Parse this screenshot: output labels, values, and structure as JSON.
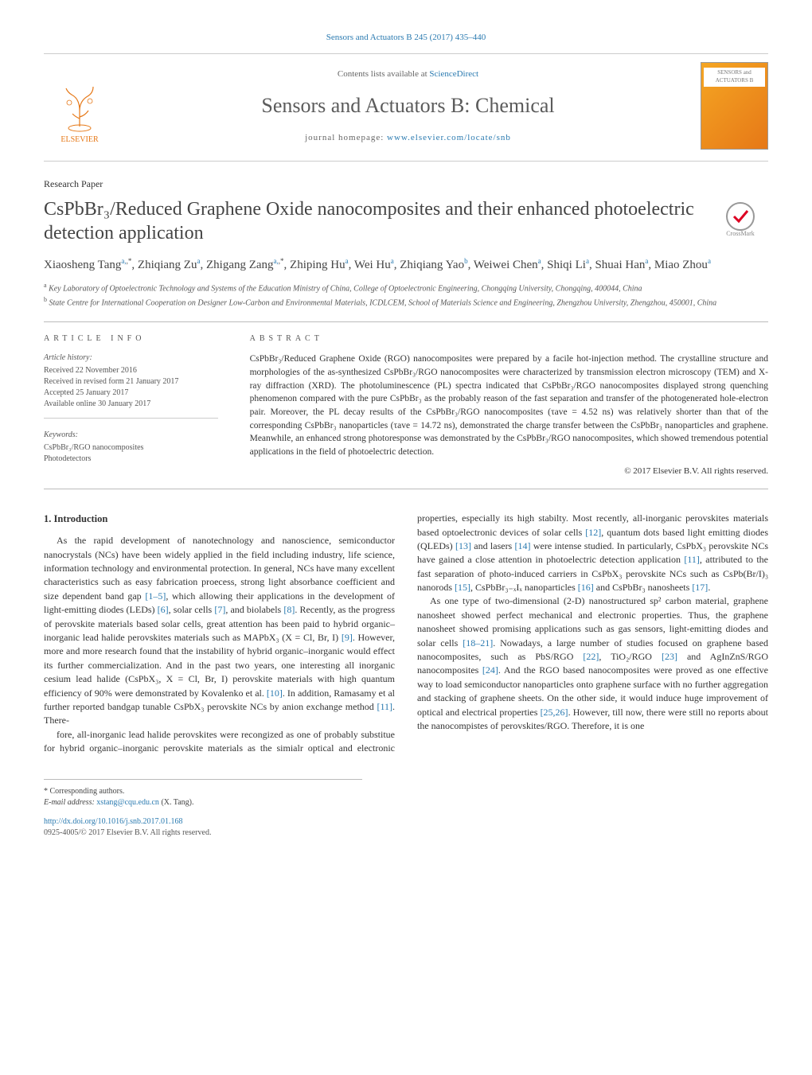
{
  "header": {
    "journal_ref": "Sensors and Actuators B 245 (2017) 435–440",
    "contents_prefix": "Contents lists available at ",
    "contents_link": "ScienceDirect",
    "journal_name": "Sensors and Actuators B: Chemical",
    "homepage_prefix": "journal homepage: ",
    "homepage_url": "www.elsevier.com/locate/snb",
    "publisher": "ELSEVIER",
    "cover_label_top": "SENSORS and",
    "cover_label_bottom": "ACTUATORS"
  },
  "article": {
    "type": "Research Paper",
    "title": "CsPbBr₃/Reduced Graphene Oxide nanocomposites and their enhanced photoelectric detection application",
    "crossmark": "CrossMark",
    "authors_html": "Xiaosheng Tang",
    "authors": [
      {
        "name": "Xiaosheng Tang",
        "aff": "a,*"
      },
      {
        "name": "Zhiqiang Zu",
        "aff": "a"
      },
      {
        "name": "Zhigang Zang",
        "aff": "a,*"
      },
      {
        "name": "Zhiping Hu",
        "aff": "a"
      },
      {
        "name": "Wei Hu",
        "aff": "a"
      },
      {
        "name": "Zhiqiang Yao",
        "aff": "b"
      },
      {
        "name": "Weiwei Chen",
        "aff": "a"
      },
      {
        "name": "Shiqi Li",
        "aff": "a"
      },
      {
        "name": "Shuai Han",
        "aff": "a"
      },
      {
        "name": "Miao Zhou",
        "aff": "a"
      }
    ],
    "affiliations": [
      {
        "key": "a",
        "text": "Key Laboratory of Optoelectronic Technology and Systems of the Education Ministry of China, College of Optoelectronic Engineering, Chongqing University, Chongqing, 400044, China"
      },
      {
        "key": "b",
        "text": "State Centre for International Cooperation on Designer Low-Carbon and Environmental Materials, ICDLCEM, School of Materials Science and Engineering, Zhengzhou University, Zhengzhou, 450001, China"
      }
    ]
  },
  "info": {
    "label": "ARTICLE INFO",
    "history_title": "Article history:",
    "history": [
      "Received 22 November 2016",
      "Received in revised form 21 January 2017",
      "Accepted 25 January 2017",
      "Available online 30 January 2017"
    ],
    "keywords_title": "Keywords:",
    "keywords": [
      "CsPbBr₃/RGO nanocomposites",
      "Photodetectors"
    ]
  },
  "abstract": {
    "label": "ABSTRACT",
    "text": "CsPbBr₃/Reduced Graphene Oxide (RGO) nanocomposites were prepared by a facile hot-injection method. The crystalline structure and morphologies of the as-synthesized CsPbBr₃/RGO nanocomposites were characterized by transmission electron microscopy (TEM) and X-ray diffraction (XRD). The photoluminescence (PL) spectra indicated that CsPbBr₃/RGO nanocomposites displayed strong quenching phenomenon compared with the pure CsPbBr₃ as the probably reason of the fast separation and transfer of the photogenerated hole-electron pair. Moreover, the PL decay results of the CsPbBr₃/RGO nanocomposites (τave = 4.52 ns) was relatively shorter than that of the corresponding CsPbBr₃ nanoparticles (τave = 14.72 ns), demonstrated the charge transfer between the CsPbBr₃ nanoparticles and graphene. Meanwhile, an enhanced strong photoresponse was demonstrated by the CsPbBr₃/RGO nanocomposites, which showed tremendous potential applications in the field of photoelectric detection.",
    "copyright": "© 2017 Elsevier B.V. All rights reserved."
  },
  "body": {
    "heading": "1. Introduction",
    "col1_p1": "As the rapid development of nanotechnology and nanoscience, semiconductor nanocrystals (NCs) have been widely applied in the field including industry, life science, information technology and environmental protection. In general, NCs have many excellent characteristics such as easy fabrication proecess, strong light absorbance coefficient and size dependent band gap [1–5], which allowing their applications in the development of light-emitting diodes (LEDs) [6], solar cells [7], and biolabels [8]. Recently, as the progress of perovskite materials based solar cells, great attention has been paid to hybrid organic–inorganic lead halide perovskites materials such as MAPbX₃ (X = Cl, Br, I) [9]. However, more and more research found that the instability of hybrid organic–inorganic would effect its further commercialization. And in the past two years, one interesting all inorganic cesium lead halide (CsPbX₃, X = Cl, Br, I) perovskite materials with high quantum efficiency of 90% were demonstrated by Kovalenko et al. [10]. In addition, Ramasamy et al further reported bandgap tunable CsPbX₃ perovskite NCs by anion exchange method [11]. There-",
    "col2_p1": "fore, all-inorganic lead halide perovskites were recongized as one of probably substitue for hybrid organic–inorganic perovskite materials as the simialr optical and electronic properties, especially its high stabilty. Most recently, all-inorganic perovskites materials based optoelectronic devices of solar cells [12], quantum dots based light emitting diodes (QLEDs) [13] and lasers [14] were intense studied. In particularly, CsPbX₃ perovskite NCs have gained a close attention in photoelectric detection application [11], attributed to the fast separation of photo-induced carriers in CsPbX₃ perovskite NCs such as CsPb(Br/I)₃ nanorods [15], CsPbBr₃₋ₓIₓ nanoparticles [16] and CsPbBr₃ nanosheets [17].",
    "col2_p2": "As one type of two-dimensional (2-D) nanostructured sp² carbon material, graphene nanosheet showed perfect mechanical and electronic properties. Thus, the graphene nanosheet showed promising applications such as gas sensors, light-emitting diodes and solar cells [18–21]. Nowadays, a large number of studies focused on graphene based nanocomposites, such as PbS/RGO [22], TiO₂/RGO [23] and AgInZnS/RGO nanocomposites [24]. And the RGO based nanocomposites were proved as one effective way to load semiconductor nanoparticles onto graphene surface with no further aggregation and stacking of graphene sheets. On the other side, it would induce huge improvement of optical and electrical properties [25,26]. However, till now, there were still no reports about the nanocompistes of perovskites/RGO. Therefore, it is one"
  },
  "footer": {
    "corr": "* Corresponding authors.",
    "email_label": "E-mail address: ",
    "email": "xstang@cqu.edu.cn",
    "email_person": " (X. Tang).",
    "doi": "http://dx.doi.org/10.1016/j.snb.2017.01.168",
    "issn_copy": "0925-4005/© 2017 Elsevier B.V. All rights reserved."
  },
  "colors": {
    "link": "#2a7ab0",
    "accent": "#e67817",
    "text": "#333333",
    "muted": "#666666",
    "rule": "#cccccc"
  },
  "refs_in_text": [
    "[1–5]",
    "[6]",
    "[7]",
    "[8]",
    "[9]",
    "[10]",
    "[11]",
    "[12]",
    "[13]",
    "[14]",
    "[15]",
    "[16]",
    "[17]",
    "[18–21]",
    "[22]",
    "[23]",
    "[24]",
    "[25,26]"
  ]
}
